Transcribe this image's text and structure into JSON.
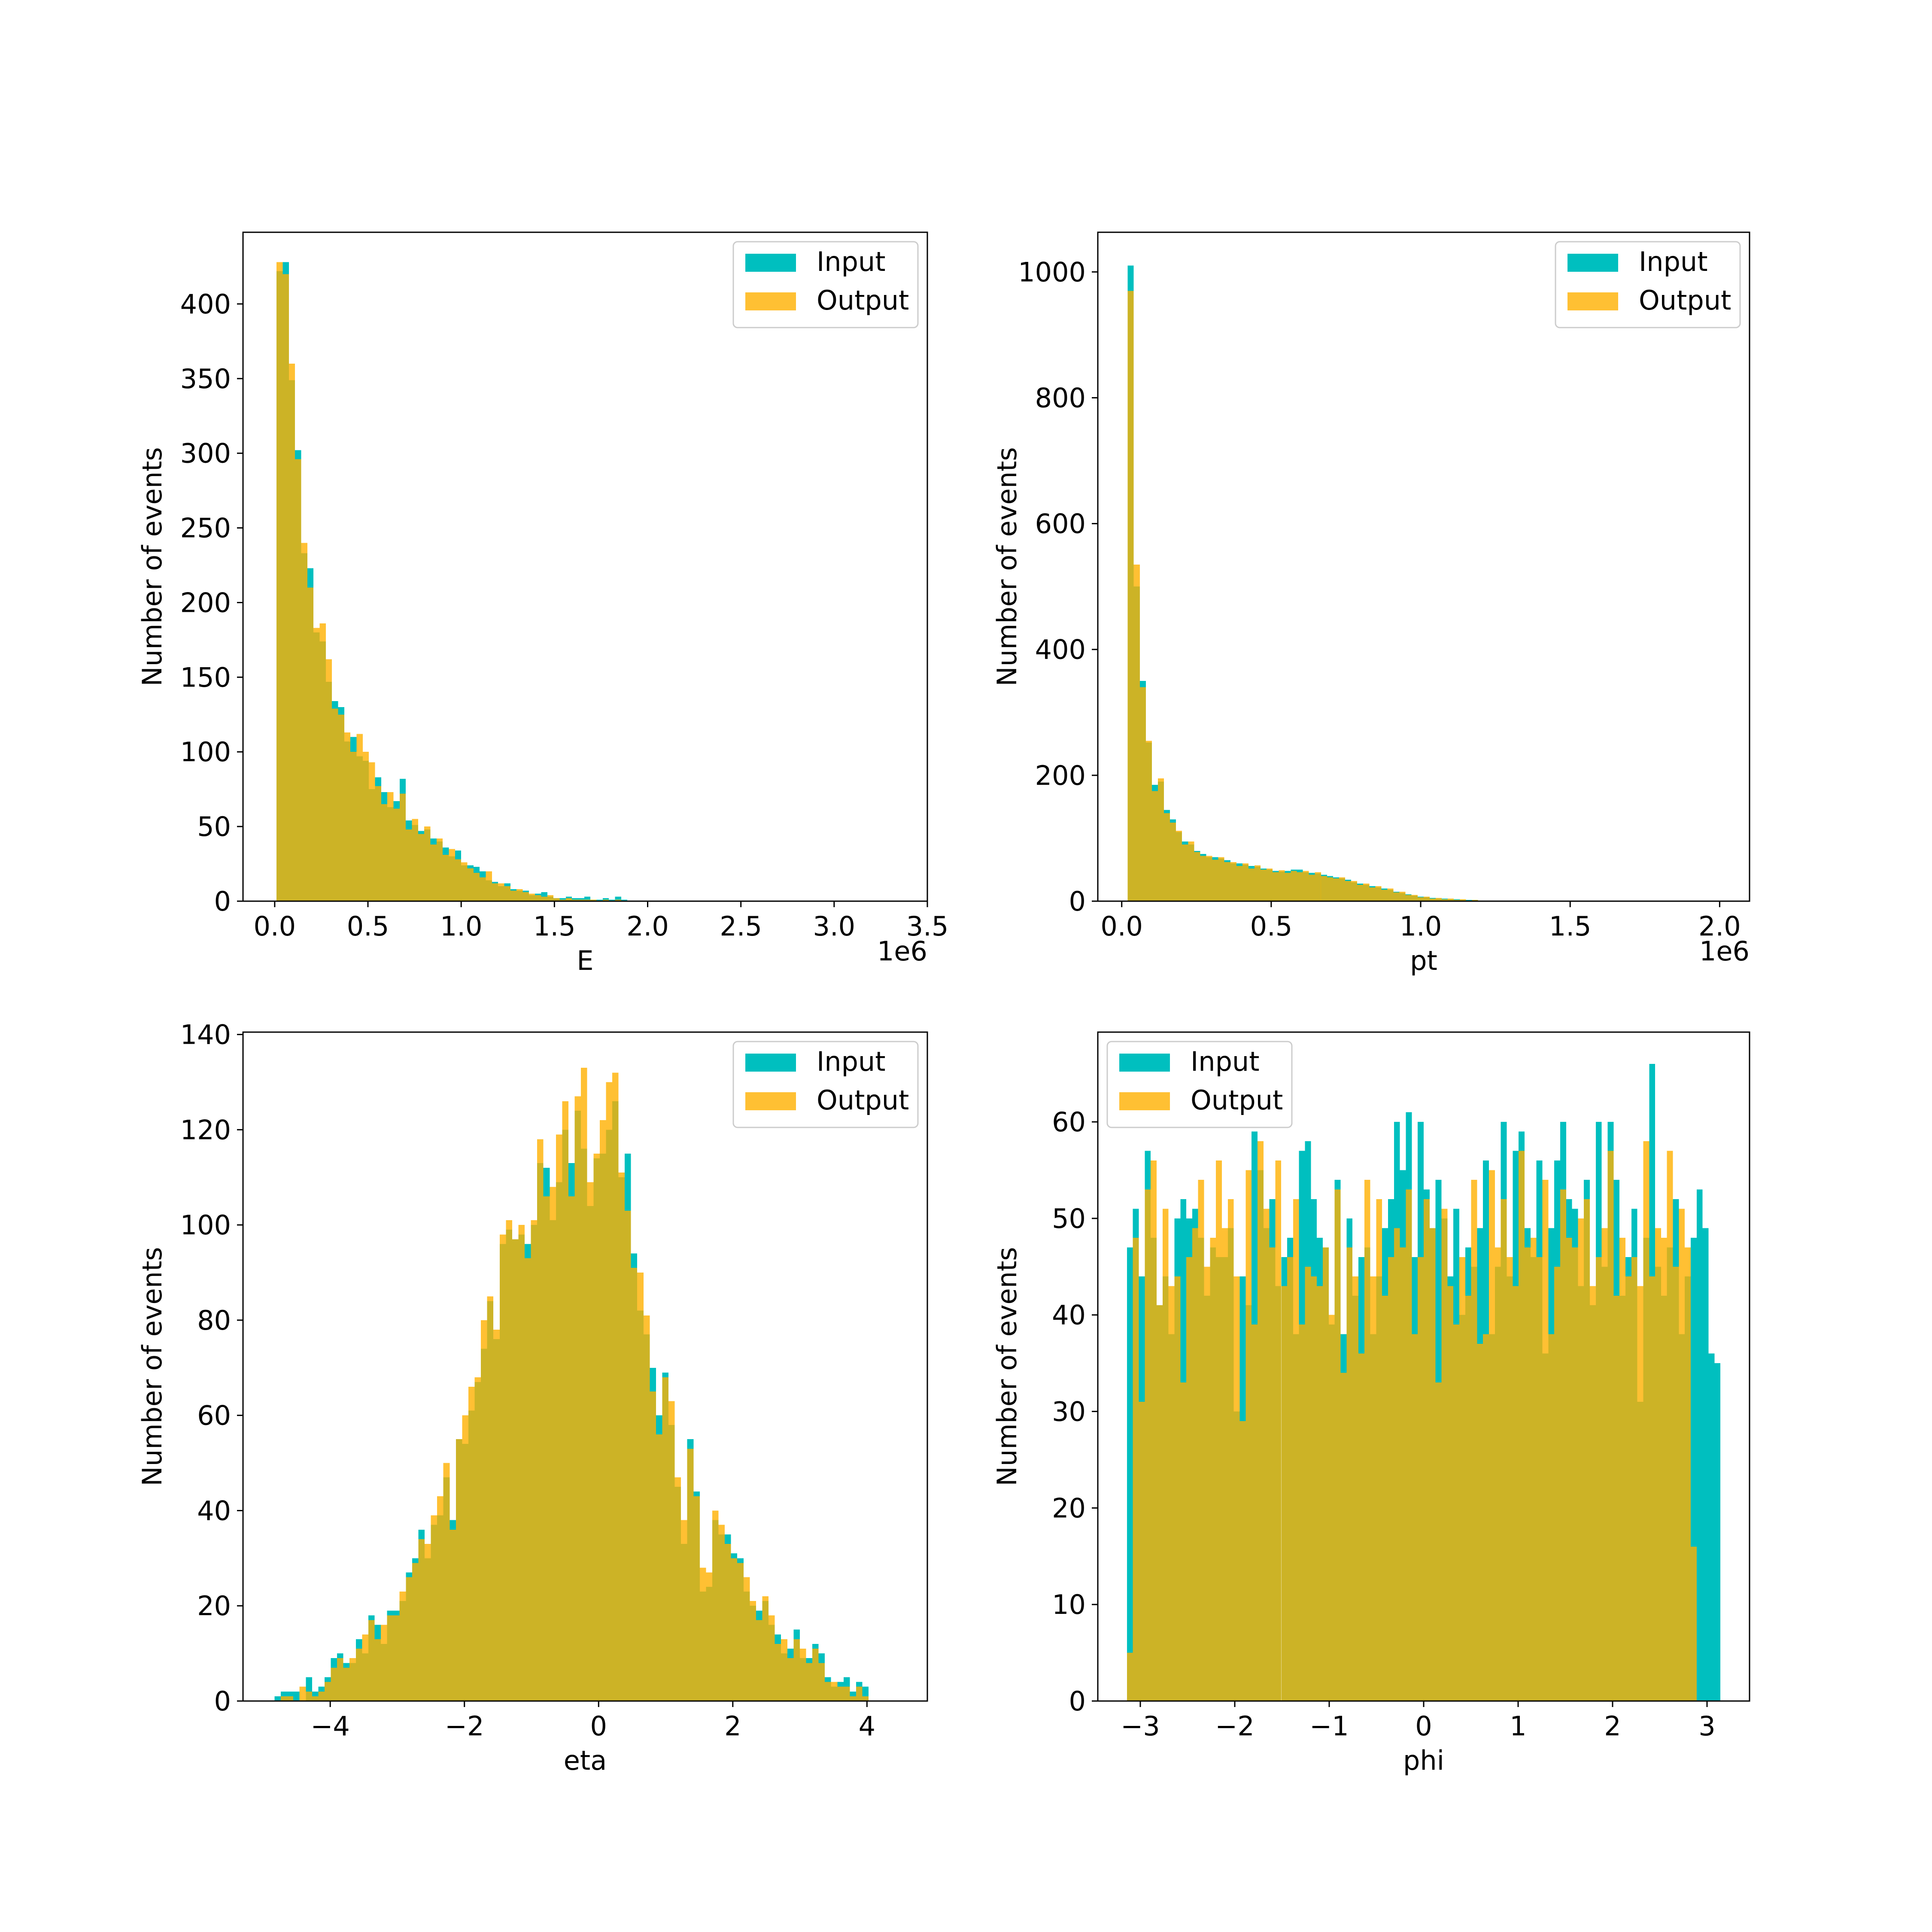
{
  "colors": {
    "input": "#00bfbf",
    "output": "#ffb000",
    "overlap": "#ccac24",
    "axis": "#000000"
  },
  "chart_data": [
    {
      "type": "bar",
      "chart_kind": "overlaid-histogram",
      "xlabel": "E",
      "ylabel": "Number of events",
      "offset_label": "1e6",
      "xlim": [
        -170000.0,
        3500000.0
      ],
      "ylim": [
        0,
        448
      ],
      "xticks": [
        0,
        500000.0,
        1000000.0,
        1500000.0,
        2000000.0,
        2500000.0,
        3000000.0,
        3500000.0
      ],
      "xtick_labels": [
        "0.0",
        "0.5",
        "1.0",
        "1.5",
        "2.0",
        "2.5",
        "3.0",
        "3.5"
      ],
      "yticks": [
        0,
        50,
        100,
        150,
        200,
        250,
        300,
        350,
        400
      ],
      "ytick_labels": [
        "0",
        "50",
        "100",
        "150",
        "200",
        "250",
        "300",
        "350",
        "400"
      ],
      "legend": {
        "position": "top-right",
        "entries": [
          "Input",
          "Output"
        ]
      },
      "bins": {
        "start": 10000.0,
        "width": 33000.0
      },
      "series": [
        {
          "name": "Input",
          "values": [
            422,
            428,
            349,
            302,
            233,
            223,
            180,
            174,
            147,
            134,
            130,
            107,
            110,
            97,
            94,
            75,
            83,
            73,
            63,
            67,
            82,
            54,
            51,
            47,
            48,
            42,
            40,
            36,
            30,
            34,
            24,
            24,
            23,
            20,
            14,
            13,
            10,
            12,
            8,
            7,
            7,
            4,
            5,
            6,
            3,
            2,
            2,
            3,
            2,
            2,
            3,
            1,
            1,
            2,
            1,
            3,
            1,
            0,
            0,
            0,
            0,
            0,
            0,
            0,
            0,
            0,
            0,
            0,
            0,
            0,
            0,
            0,
            0,
            0,
            0,
            0,
            0,
            0,
            0,
            0,
            0,
            0,
            0,
            0,
            0,
            0,
            0,
            0,
            0,
            0,
            0,
            0,
            0,
            0,
            0,
            0,
            0,
            0,
            0,
            0
          ]
        },
        {
          "name": "Output",
          "values": [
            428,
            420,
            360,
            296,
            240,
            210,
            183,
            186,
            162,
            129,
            125,
            113,
            100,
            112,
            100,
            93,
            77,
            65,
            73,
            62,
            72,
            48,
            55,
            45,
            50,
            38,
            42,
            31,
            35,
            28,
            26,
            22,
            19,
            16,
            20,
            12,
            12,
            10,
            7,
            8,
            6,
            5,
            4,
            3,
            4,
            2,
            1,
            2,
            1,
            1,
            1,
            1,
            0,
            1,
            0,
            1,
            0,
            0,
            0,
            0,
            0,
            0,
            0,
            0,
            0,
            0,
            0,
            0,
            0,
            0,
            0,
            0,
            0,
            0,
            0,
            0,
            0,
            0,
            0,
            0,
            0,
            0,
            0,
            0,
            0,
            0,
            0,
            0,
            0,
            0,
            0,
            0,
            0,
            0,
            0,
            0,
            0,
            0,
            0,
            0
          ]
        }
      ]
    },
    {
      "type": "bar",
      "chart_kind": "overlaid-histogram",
      "xlabel": "pt",
      "ylabel": "Number of events",
      "offset_label": "1e6",
      "xlim": [
        -80000.0,
        2100000.0
      ],
      "ylim": [
        0,
        1063
      ],
      "xticks": [
        0,
        500000.0,
        1000000.0,
        1500000.0,
        2000000.0
      ],
      "xtick_labels": [
        "0.0",
        "0.5",
        "1.0",
        "1.5",
        "2.0"
      ],
      "yticks": [
        0,
        200,
        400,
        600,
        800,
        1000
      ],
      "ytick_labels": [
        "0",
        "200",
        "400",
        "600",
        "800",
        "1000"
      ],
      "legend": {
        "position": "top-right",
        "entries": [
          "Input",
          "Output"
        ]
      },
      "bins": {
        "start": 20000.0,
        "width": 20200.0
      },
      "series": [
        {
          "name": "Input",
          "values": [
            1010,
            500,
            350,
            252,
            185,
            190,
            145,
            130,
            110,
            95,
            90,
            80,
            75,
            70,
            70,
            68,
            65,
            60,
            60,
            58,
            56,
            55,
            52,
            50,
            48,
            47,
            48,
            50,
            50,
            46,
            45,
            44,
            42,
            40,
            38,
            36,
            34,
            30,
            28,
            26,
            24,
            22,
            20,
            18,
            15,
            13,
            11,
            9,
            7,
            6,
            5,
            4,
            4,
            3,
            3,
            2,
            2,
            2,
            1,
            1,
            1,
            1,
            1,
            1,
            1,
            0,
            0,
            1,
            0,
            0,
            0,
            0,
            0,
            0,
            0,
            0,
            0,
            0,
            0,
            0,
            0,
            0,
            0,
            0,
            0,
            0,
            0,
            0,
            0,
            0,
            0,
            0,
            0,
            0,
            0,
            0,
            0,
            0,
            0,
            0
          ]
        },
        {
          "name": "Output",
          "values": [
            970,
            535,
            340,
            255,
            175,
            195,
            140,
            125,
            112,
            90,
            95,
            78,
            72,
            72,
            66,
            70,
            62,
            62,
            56,
            60,
            52,
            57,
            50,
            52,
            46,
            49,
            45,
            48,
            46,
            48,
            42,
            46,
            40,
            38,
            36,
            38,
            32,
            32,
            26,
            28,
            22,
            24,
            18,
            20,
            14,
            15,
            10,
            10,
            6,
            7,
            4,
            5,
            3,
            4,
            2,
            3,
            1,
            2,
            1,
            1,
            0,
            1,
            0,
            1,
            0,
            0,
            0,
            0,
            0,
            0,
            0,
            0,
            0,
            0,
            0,
            0,
            0,
            0,
            0,
            0,
            0,
            0,
            0,
            0,
            0,
            0,
            0,
            0,
            0,
            0,
            0,
            0,
            0,
            0,
            0,
            0,
            0,
            0,
            0,
            0
          ]
        }
      ]
    },
    {
      "type": "bar",
      "chart_kind": "overlaid-histogram",
      "xlabel": "eta",
      "ylabel": "Number of events",
      "offset_label": "",
      "xlim": [
        -5.3,
        4.9
      ],
      "ylim": [
        0,
        140.5
      ],
      "xticks": [
        -4,
        -2,
        0,
        2,
        4
      ],
      "xtick_labels": [
        "−4",
        "−2",
        "0",
        "2",
        "4"
      ],
      "yticks": [
        0,
        20,
        40,
        60,
        80,
        100,
        120,
        140
      ],
      "ytick_labels": [
        "0",
        "20",
        "40",
        "60",
        "80",
        "100",
        "120",
        "140"
      ],
      "legend": {
        "position": "top-right",
        "entries": [
          "Input",
          "Output"
        ]
      },
      "bins": {
        "start": -4.83,
        "width": 0.0932
      },
      "series": [
        {
          "name": "Input",
          "values": [
            1,
            2,
            2,
            2,
            0,
            5,
            2,
            3,
            5,
            9,
            10,
            8,
            8,
            13,
            10,
            18,
            16,
            12,
            19,
            19,
            21,
            27,
            30,
            36,
            30,
            37,
            39,
            47,
            38,
            55,
            54,
            61,
            67,
            74,
            84,
            76,
            96,
            99,
            97,
            98,
            96,
            100,
            113,
            112,
            101,
            109,
            120,
            113,
            124,
            116,
            104,
            114,
            115,
            120,
            126,
            110,
            115,
            94,
            82,
            77,
            70,
            60,
            69,
            58,
            45,
            33,
            55,
            44,
            23,
            24,
            38,
            35,
            35,
            31,
            30,
            23,
            20,
            19,
            21,
            16,
            14,
            10,
            11,
            15,
            9,
            9,
            12,
            10,
            5,
            3,
            4,
            5,
            2,
            4,
            3,
            0,
            0,
            0,
            0,
            0
          ]
        },
        {
          "name": "Output",
          "values": [
            0,
            1,
            1,
            0,
            3,
            2,
            1,
            2,
            4,
            7,
            9,
            7,
            9,
            11,
            14,
            17,
            13,
            16,
            18,
            18,
            23,
            26,
            29,
            34,
            33,
            39,
            43,
            50,
            36,
            55,
            60,
            66,
            68,
            80,
            85,
            78,
            98,
            101,
            97,
            100,
            93,
            101,
            118,
            106,
            108,
            119,
            126,
            106,
            127,
            133,
            109,
            115,
            122,
            130,
            132,
            111,
            103,
            91,
            90,
            81,
            65,
            56,
            68,
            63,
            47,
            38,
            53,
            43,
            28,
            27,
            40,
            37,
            33,
            30,
            29,
            26,
            21,
            17,
            22,
            18,
            12,
            13,
            9,
            13,
            11,
            8,
            11,
            8,
            4,
            4,
            3,
            3,
            1,
            3,
            1,
            0,
            0,
            0,
            0,
            0
          ]
        }
      ]
    },
    {
      "type": "bar",
      "chart_kind": "overlaid-histogram",
      "xlabel": "phi",
      "ylabel": "Number of events",
      "offset_label": "",
      "xlim": [
        -3.45,
        3.45
      ],
      "ylim": [
        0,
        69.3
      ],
      "xticks": [
        -3,
        -2,
        -1,
        0,
        1,
        2,
        3
      ],
      "xtick_labels": [
        "−3",
        "−2",
        "−1",
        "0",
        "1",
        "2",
        "3"
      ],
      "yticks": [
        0,
        10,
        20,
        30,
        40,
        50,
        60
      ],
      "ytick_labels": [
        "0",
        "10",
        "20",
        "30",
        "40",
        "50",
        "60"
      ],
      "legend": {
        "position": "top-left",
        "entries": [
          "Input",
          "Output"
        ]
      },
      "bins": {
        "start": -3.1416,
        "width": 0.062832
      },
      "series": [
        {
          "name": "Input",
          "values": [
            47,
            51,
            44,
            57,
            48,
            41,
            44,
            38,
            50,
            52,
            50,
            51,
            48,
            42,
            47,
            46,
            46,
            49,
            30,
            44,
            41,
            59,
            55,
            49,
            52,
            43,
            46,
            48,
            38,
            57,
            58,
            52,
            48,
            47,
            39,
            54,
            38,
            50,
            42,
            46,
            47,
            38,
            44,
            49,
            52,
            60,
            55,
            61,
            46,
            60,
            53,
            49,
            54,
            50,
            44,
            51,
            40,
            47,
            45,
            49,
            56,
            38,
            45,
            60,
            44,
            57,
            59,
            49,
            46,
            56,
            36,
            49,
            56,
            60,
            52,
            51,
            43,
            54,
            41,
            60,
            45,
            60,
            54,
            42,
            46,
            51,
            31,
            48,
            66,
            45,
            42,
            47,
            52,
            38,
            44,
            48,
            53,
            49,
            36,
            35
          ]
        },
        {
          "name": "Output",
          "values": [
            5,
            48,
            31,
            53,
            56,
            41,
            51,
            43,
            44,
            33,
            46,
            49,
            54,
            45,
            48,
            56,
            49,
            52,
            44,
            29,
            55,
            39,
            58,
            51,
            47,
            56,
            43,
            46,
            52,
            39,
            45,
            44,
            43,
            47,
            40,
            53,
            34,
            47,
            44,
            36,
            54,
            44,
            52,
            42,
            46,
            49,
            47,
            53,
            38,
            46,
            52,
            49,
            33,
            51,
            43,
            39,
            46,
            42,
            54,
            37,
            38,
            55,
            47,
            52,
            46,
            43,
            57,
            47,
            48,
            46,
            54,
            38,
            45,
            53,
            48,
            47,
            50,
            52,
            43,
            46,
            49,
            57,
            42,
            48,
            44,
            46,
            43,
            58,
            44,
            49,
            48,
            57,
            45,
            51,
            47,
            16,
            0,
            0,
            0,
            0
          ]
        }
      ]
    }
  ]
}
